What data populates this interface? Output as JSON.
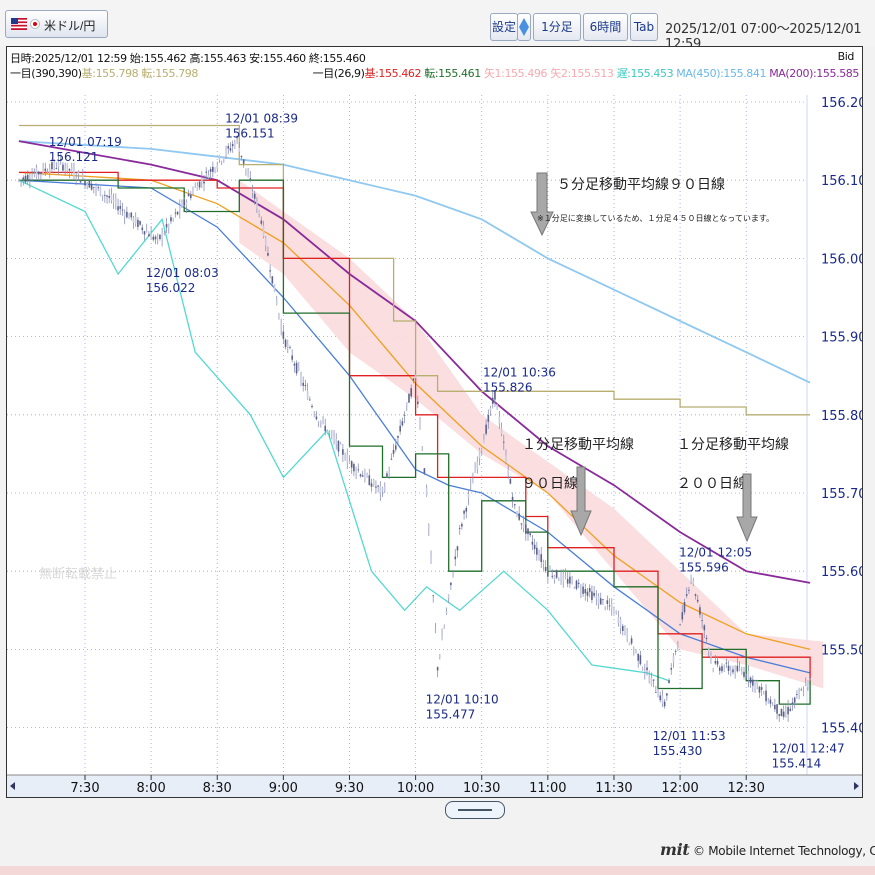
{
  "toolbar": {
    "pair_label": "米ドル/円",
    "settings_label": "設定",
    "timeframe_label": "1分足",
    "range_label": "6時間",
    "tab_label": "Tab",
    "date_range": "2025/12/01 07:00～2025/12/01 12:59"
  },
  "info": {
    "ohlc": "日時:2025/12/01 12:59 始:155.462 高:155.463 安:155.460 終:155.460",
    "bid": "Bid",
    "ichimoku_long_prefix": "一目(390,390)",
    "ichimoku_long_kijun": "基:155.798",
    "ichimoku_long_tenkan": "転:155.798",
    "ichimoku_short_prefix": "一目(26,9)",
    "ichimoku_short_kijun": "基:155.462",
    "ichimoku_short_tenkan": "転:155.461",
    "senkou1": "⽮1:155.496",
    "senkou2": "⽮2:155.513",
    "chikou": "遅:155.453",
    "ma450": "MA(450):155.841",
    "ma200": "MA(200):155.585"
  },
  "colors": {
    "kijun_long": "#b8ae70",
    "kijun_short": "#e02020",
    "tenkan_short": "#1f6e2a",
    "cloud": "#fadadd",
    "chikou": "#55d8d0",
    "ma_blue": "#4a7ed8",
    "ma_orange": "#f0a020",
    "ma450": "#8fc8f0",
    "ma200": "#8a2a9a",
    "annotation": "#1a2a8a"
  },
  "annotations": {
    "watermark": "無断転載禁止",
    "ma90_5min_title": "５分足移動平均線９０日線",
    "ma90_5min_note": "※１分足に変換しているため、１分足４５０日線となっています。",
    "ma90_1min_line1": "１分足移動平均線",
    "ma90_1min_line2": "９０日線",
    "ma200_1min_line1": "１分足移動平均線",
    "ma200_1min_line2": "２００日線"
  },
  "copyright": "© Mobile Internet Technology, Co.,LTD.",
  "copyright_logo": "mit",
  "chart_data": {
    "type": "candlestick",
    "title": "",
    "timeframe": "1分足",
    "y_axis": {
      "ticks": [
        "156.200",
        "156.100",
        "156.000",
        "155.900",
        "155.800",
        "155.700",
        "155.600",
        "155.500",
        "155.400"
      ],
      "range": [
        155.38,
        156.22
      ],
      "side": "right"
    },
    "x_axis": {
      "ticks": [
        "7:30",
        "8:00",
        "8:30",
        "9:00",
        "9:30",
        "10:00",
        "10:30",
        "11:00",
        "11:30",
        "12:00",
        "12:30"
      ],
      "range": [
        "07:00",
        "12:59"
      ]
    },
    "grid": true,
    "price_labels": [
      {
        "time": "07:19",
        "date": "12/01 07:19",
        "price": "156.121"
      },
      {
        "time": "08:03",
        "date": "12/01 08:03",
        "price": "156.022"
      },
      {
        "time": "08:39",
        "date": "12/01 08:39",
        "price": "156.151"
      },
      {
        "time": "10:10",
        "date": "12/01 10:10",
        "price": "155.477"
      },
      {
        "time": "10:36",
        "date": "12/01 10:36",
        "price": "155.826"
      },
      {
        "time": "11:53",
        "date": "12/01 11:53",
        "price": "155.430"
      },
      {
        "time": "12:05",
        "date": "12/01 12:05",
        "price": "155.596"
      },
      {
        "time": "12:47",
        "date": "12/01 12:47",
        "price": "155.414"
      }
    ],
    "series": [
      {
        "name": "MA(200)",
        "color": "#8a2a9a",
        "points": [
          [
            "07:00",
            156.15
          ],
          [
            "08:00",
            156.12
          ],
          [
            "08:30",
            156.1
          ],
          [
            "09:00",
            156.05
          ],
          [
            "09:30",
            155.98
          ],
          [
            "10:00",
            155.92
          ],
          [
            "10:30",
            155.83
          ],
          [
            "11:00",
            155.76
          ],
          [
            "11:30",
            155.71
          ],
          [
            "12:00",
            155.65
          ],
          [
            "12:30",
            155.6
          ],
          [
            "12:59",
            155.585
          ]
        ]
      },
      {
        "name": "MA(450)",
        "color": "#8fc8f0",
        "points": [
          [
            "07:00",
            156.15
          ],
          [
            "08:00",
            156.14
          ],
          [
            "08:30",
            156.13
          ],
          [
            "09:00",
            156.12
          ],
          [
            "09:30",
            156.1
          ],
          [
            "10:00",
            156.08
          ],
          [
            "10:30",
            156.05
          ],
          [
            "11:00",
            156.0
          ],
          [
            "11:30",
            155.96
          ],
          [
            "12:00",
            155.92
          ],
          [
            "12:30",
            155.88
          ],
          [
            "12:59",
            155.841
          ]
        ]
      },
      {
        "name": "一目(390,390) 基",
        "color": "#b8ae70",
        "points": [
          [
            "07:00",
            156.17
          ],
          [
            "08:30",
            156.17
          ],
          [
            "08:40",
            156.12
          ],
          [
            "09:00",
            156.0
          ],
          [
            "09:30",
            156.0
          ],
          [
            "09:50",
            155.92
          ],
          [
            "10:00",
            155.85
          ],
          [
            "10:10",
            155.83
          ],
          [
            "10:30",
            155.83
          ],
          [
            "11:00",
            155.83
          ],
          [
            "11:30",
            155.82
          ],
          [
            "12:00",
            155.81
          ],
          [
            "12:30",
            155.8
          ],
          [
            "12:59",
            155.8
          ]
        ]
      },
      {
        "name": "Orange MA",
        "color": "#f0a020",
        "points": [
          [
            "07:00",
            156.11
          ],
          [
            "08:00",
            156.1
          ],
          [
            "08:30",
            156.07
          ],
          [
            "09:00",
            156.02
          ],
          [
            "09:30",
            155.94
          ],
          [
            "10:00",
            155.84
          ],
          [
            "10:30",
            155.76
          ],
          [
            "11:00",
            155.7
          ],
          [
            "11:30",
            155.62
          ],
          [
            "12:00",
            155.56
          ],
          [
            "12:30",
            155.52
          ],
          [
            "12:59",
            155.5
          ]
        ]
      },
      {
        "name": "Blue MA",
        "color": "#4a7ed8",
        "points": [
          [
            "07:00",
            156.1
          ],
          [
            "08:00",
            156.09
          ],
          [
            "08:30",
            156.04
          ],
          [
            "09:00",
            155.95
          ],
          [
            "09:30",
            155.85
          ],
          [
            "10:00",
            155.73
          ],
          [
            "10:15",
            155.71
          ],
          [
            "10:30",
            155.7
          ],
          [
            "11:00",
            155.65
          ],
          [
            "11:30",
            155.58
          ],
          [
            "12:00",
            155.52
          ],
          [
            "12:30",
            155.49
          ],
          [
            "12:59",
            155.47
          ]
        ]
      },
      {
        "name": "一目(26,9) 基",
        "color": "#e02020",
        "points": [
          [
            "07:00",
            156.11
          ],
          [
            "07:45",
            156.1
          ],
          [
            "08:30",
            156.09
          ],
          [
            "09:00",
            156.0
          ],
          [
            "09:30",
            155.85
          ],
          [
            "10:00",
            155.8
          ],
          [
            "10:10",
            155.72
          ],
          [
            "10:30",
            155.72
          ],
          [
            "10:50",
            155.67
          ],
          [
            "11:00",
            155.63
          ],
          [
            "11:30",
            155.6
          ],
          [
            "11:50",
            155.52
          ],
          [
            "12:10",
            155.49
          ],
          [
            "12:30",
            155.49
          ],
          [
            "12:59",
            155.46
          ]
        ]
      },
      {
        "name": "一目(26,9) 転",
        "color": "#1f6e2a",
        "points": [
          [
            "07:00",
            156.1
          ],
          [
            "07:45",
            156.09
          ],
          [
            "08:15",
            156.06
          ],
          [
            "08:40",
            156.1
          ],
          [
            "09:00",
            155.93
          ],
          [
            "09:30",
            155.76
          ],
          [
            "09:45",
            155.72
          ],
          [
            "10:00",
            155.75
          ],
          [
            "10:15",
            155.6
          ],
          [
            "10:30",
            155.69
          ],
          [
            "10:50",
            155.65
          ],
          [
            "11:00",
            155.6
          ],
          [
            "11:30",
            155.58
          ],
          [
            "11:50",
            155.45
          ],
          [
            "12:10",
            155.5
          ],
          [
            "12:30",
            155.46
          ],
          [
            "12:45",
            155.43
          ],
          [
            "12:59",
            155.46
          ]
        ]
      },
      {
        "name": "遅",
        "color": "#55d8d0",
        "points": [
          [
            "07:00",
            156.1
          ],
          [
            "07:30",
            156.06
          ],
          [
            "07:45",
            155.98
          ],
          [
            "08:05",
            156.05
          ],
          [
            "08:20",
            155.88
          ],
          [
            "08:45",
            155.8
          ],
          [
            "09:00",
            155.72
          ],
          [
            "09:20",
            155.78
          ],
          [
            "09:40",
            155.6
          ],
          [
            "09:55",
            155.55
          ],
          [
            "10:05",
            155.58
          ],
          [
            "10:20",
            155.55
          ],
          [
            "10:40",
            155.6
          ],
          [
            "11:00",
            155.55
          ],
          [
            "11:20",
            155.48
          ],
          [
            "11:45",
            155.47
          ],
          [
            "11:55",
            155.46
          ]
        ]
      },
      {
        "name": "Price",
        "color": "#9aa0c0",
        "points": [
          [
            "07:00",
            156.1
          ],
          [
            "07:19",
            156.121
          ],
          [
            "07:40",
            156.08
          ],
          [
            "08:03",
            156.022
          ],
          [
            "08:20",
            156.09
          ],
          [
            "08:39",
            156.151
          ],
          [
            "08:50",
            156.05
          ],
          [
            "09:00",
            155.9
          ],
          [
            "09:15",
            155.8
          ],
          [
            "09:30",
            155.74
          ],
          [
            "09:45",
            155.7
          ],
          [
            "10:00",
            155.85
          ],
          [
            "10:05",
            155.7
          ],
          [
            "10:10",
            155.477
          ],
          [
            "10:20",
            155.65
          ],
          [
            "10:36",
            155.826
          ],
          [
            "10:45",
            155.68
          ],
          [
            "11:00",
            155.6
          ],
          [
            "11:15",
            155.58
          ],
          [
            "11:30",
            155.55
          ],
          [
            "11:45",
            155.47
          ],
          [
            "11:53",
            155.43
          ],
          [
            "12:05",
            155.596
          ],
          [
            "12:15",
            155.48
          ],
          [
            "12:30",
            155.47
          ],
          [
            "12:47",
            155.414
          ],
          [
            "12:59",
            155.46
          ]
        ]
      }
    ],
    "cloud": {
      "name": "一目(26,9) 雲",
      "color": "#fadadd",
      "upper": [
        [
          "08:40",
          156.1
        ],
        [
          "09:00",
          156.06
        ],
        [
          "09:30",
          156.0
        ],
        [
          "10:00",
          155.92
        ],
        [
          "10:30",
          155.8
        ],
        [
          "11:00",
          155.74
        ],
        [
          "11:30",
          155.68
        ],
        [
          "12:00",
          155.6
        ],
        [
          "12:30",
          155.52
        ],
        [
          "13:05",
          155.51
        ]
      ],
      "lower": [
        [
          "08:40",
          156.02
        ],
        [
          "09:00",
          155.98
        ],
        [
          "09:30",
          155.88
        ],
        [
          "10:00",
          155.82
        ],
        [
          "10:30",
          155.75
        ],
        [
          "11:00",
          155.7
        ],
        [
          "11:30",
          155.6
        ],
        [
          "12:00",
          155.5
        ],
        [
          "12:30",
          155.48
        ],
        [
          "13:05",
          155.45
        ]
      ]
    }
  }
}
